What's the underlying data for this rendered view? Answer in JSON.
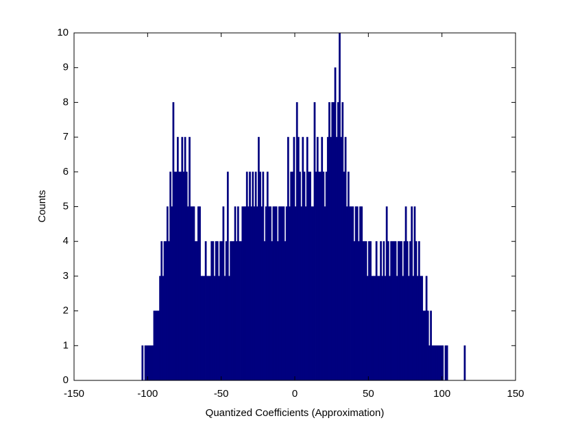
{
  "chart_data": {
    "type": "histogram",
    "x_label": "Quantized Coefficients (Approximation)",
    "y_label": "Counts",
    "color": "#00007f",
    "bins": [
      -104,
      -103,
      -102,
      -101,
      -100,
      -99,
      -98,
      -97,
      -96,
      -95,
      -94,
      -93,
      -92,
      -91,
      -90,
      -89,
      -88,
      -87,
      -86,
      -85,
      -84,
      -83,
      -82,
      -81,
      -80,
      -79,
      -78,
      -77,
      -76,
      -75,
      -74,
      -73,
      -72,
      -71,
      -70,
      -69,
      -68,
      -67,
      -66,
      -65,
      -64,
      -63,
      -62,
      -61,
      -60,
      -59,
      -58,
      -57,
      -56,
      -55,
      -54,
      -53,
      -52,
      -51,
      -50,
      -49,
      -48,
      -47,
      -46,
      -45,
      -44,
      -43,
      -42,
      -41,
      -40,
      -39,
      -38,
      -37,
      -36,
      -35,
      -34,
      -33,
      -32,
      -31,
      -30,
      -29,
      -28,
      -27,
      -26,
      -25,
      -24,
      -23,
      -22,
      -21,
      -20,
      -19,
      -18,
      -17,
      -16,
      -15,
      -14,
      -13,
      -12,
      -11,
      -10,
      -9,
      -8,
      -7,
      -6,
      -5,
      -4,
      -3,
      -2,
      -1,
      0,
      1,
      2,
      3,
      4,
      5,
      6,
      7,
      8,
      9,
      10,
      11,
      12,
      13,
      14,
      15,
      16,
      17,
      18,
      19,
      20,
      21,
      22,
      23,
      24,
      25,
      26,
      27,
      28,
      29,
      30,
      31,
      32,
      33,
      34,
      35,
      36,
      37,
      38,
      39,
      40,
      41,
      42,
      43,
      44,
      45,
      46,
      47,
      48,
      49,
      50,
      51,
      52,
      53,
      54,
      55,
      56,
      57,
      58,
      59,
      60,
      61,
      62,
      63,
      64,
      65,
      66,
      67,
      68,
      69,
      70,
      71,
      72,
      73,
      74,
      75,
      76,
      77,
      78,
      79,
      80,
      81,
      82,
      83,
      84,
      85,
      86,
      87,
      88,
      89,
      90,
      91,
      92,
      93,
      94,
      95,
      96,
      97,
      98,
      99,
      100,
      101,
      102,
      103,
      104,
      105,
      106,
      107,
      108,
      109,
      110,
      111,
      112,
      113,
      114,
      115,
      116
    ],
    "values": [
      1,
      0,
      1,
      1,
      1,
      1,
      1,
      1,
      2,
      2,
      2,
      2,
      3,
      4,
      3,
      4,
      4,
      5,
      4,
      6,
      5,
      8,
      6,
      6,
      7,
      6,
      6,
      7,
      6,
      7,
      6,
      5,
      7,
      5,
      5,
      5,
      4,
      4,
      5,
      5,
      3,
      3,
      3,
      4,
      3,
      3,
      3,
      4,
      4,
      3,
      4,
      4,
      3,
      4,
      4,
      5,
      3,
      4,
      6,
      3,
      4,
      4,
      4,
      5,
      4,
      5,
      4,
      4,
      5,
      5,
      5,
      6,
      5,
      6,
      5,
      6,
      5,
      6,
      5,
      7,
      6,
      5,
      6,
      4,
      5,
      6,
      5,
      5,
      4,
      5,
      5,
      5,
      4,
      5,
      5,
      5,
      5,
      4,
      5,
      7,
      5,
      6,
      6,
      7,
      5,
      8,
      7,
      6,
      5,
      7,
      6,
      5,
      7,
      6,
      6,
      5,
      5,
      8,
      6,
      7,
      6,
      6,
      7,
      6,
      5,
      6,
      7,
      8,
      7,
      8,
      8,
      9,
      7,
      8,
      10,
      7,
      8,
      6,
      7,
      5,
      6,
      5,
      5,
      5,
      4,
      5,
      5,
      4,
      5,
      5,
      4,
      4,
      4,
      3,
      4,
      4,
      3,
      3,
      3,
      4,
      3,
      3,
      4,
      3,
      4,
      3,
      5,
      4,
      3,
      4,
      4,
      4,
      4,
      3,
      4,
      4,
      4,
      3,
      4,
      5,
      4,
      3,
      4,
      5,
      3,
      5,
      4,
      3,
      4,
      3,
      3,
      2,
      2,
      3,
      2,
      1,
      2,
      1,
      1,
      1,
      1,
      1,
      1,
      1,
      1,
      0,
      1,
      1,
      0,
      0,
      0,
      0,
      0,
      0,
      0,
      0,
      0,
      0,
      0,
      1
    ],
    "xlim": [
      -150,
      150
    ],
    "xticks": [
      -150,
      -100,
      -50,
      0,
      50,
      100,
      150
    ],
    "ylim": [
      0,
      10
    ],
    "yticks": [
      0,
      1,
      2,
      3,
      4,
      5,
      6,
      7,
      8,
      9,
      10
    ]
  }
}
